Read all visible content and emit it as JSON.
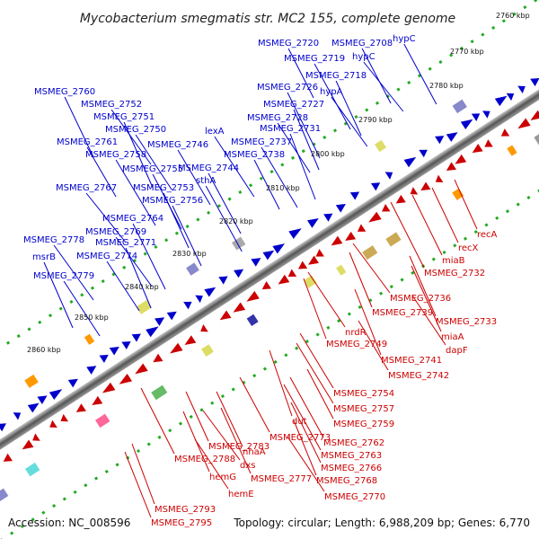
{
  "title": "Mycobacterium smegmatis str. MC2 155, complete genome",
  "footer": {
    "accession": "Accession: NC_008596",
    "summary": "Topology: circular; Length: 6,988,209 bp; Genes: 6,770"
  },
  "colors": {
    "forward": "#0000cc",
    "reverse": "#cc0000",
    "backbone": "#555555",
    "ticks": "#22aa22"
  },
  "ticks": [
    "2760 kbp",
    "2770 kbp",
    "2780 kbp",
    "2790 kbp",
    "2800 kbp",
    "2810 kbp",
    "2820 kbp",
    "2830 kbp",
    "2840 kbp",
    "2850 kbp",
    "2860 kbp"
  ],
  "forward_labels": [
    "MSMEG_2720",
    "MSMEG_2708",
    "hypC",
    "MSMEG_2719",
    "hypC",
    "MSMEG_2718",
    "MSMEG_2760",
    "MSMEG_2726",
    "hypA",
    "MSMEG_2752",
    "MSMEG_2727",
    "MSMEG_2751",
    "MSMEG_2728",
    "MSMEG_2750",
    "lexA",
    "MSMEG_2731",
    "MSMEG_2761",
    "MSMEG_2746",
    "MSMEG_2737",
    "MSMEG_2758",
    "MSMEG_2738",
    "MSMEG_2755",
    "MSMEG_2744",
    "sthA",
    "MSMEG_2767",
    "MSMEG_2753",
    "MSMEG_2756",
    "MSMEG_2764",
    "MSMEG_2769",
    "MSMEG_2778",
    "MSMEG_2771",
    "msrB",
    "MSMEG_2774",
    "MSMEG_2779"
  ],
  "reverse_labels": [
    "recA",
    "recX",
    "miaB",
    "MSMEG_2732",
    "MSMEG_2736",
    "MSMEG_2739",
    "MSMEG_2733",
    "miaA",
    "dapF",
    "nrdR",
    "MSMEG_2749",
    "MSMEG_2741",
    "MSMEG_2742",
    "MSMEG_2754",
    "MSMEG_2757",
    "dut",
    "MSMEG_2759",
    "MSMEG_2773",
    "MSMEG_2762",
    "MSMEG_2763",
    "MSMEG_2783",
    "nhaA",
    "MSMEG_2766",
    "MSMEG_2788",
    "dxs",
    "MSMEG_2768",
    "hemG",
    "MSMEG_2777",
    "hemE",
    "MSMEG_2770",
    "MSMEG_2793",
    "MSMEG_2795"
  ]
}
